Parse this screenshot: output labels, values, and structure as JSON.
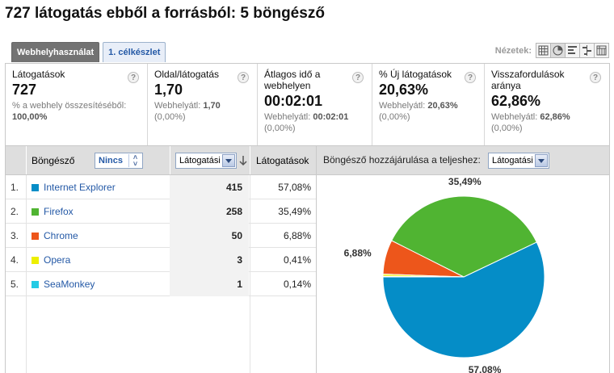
{
  "title": "727 látogatás ebből a forrásból: 5 böngésző",
  "tabs": [
    {
      "label": "Webhelyhasználat",
      "active": true
    },
    {
      "label": "1. célkészlet",
      "active": false
    }
  ],
  "views": {
    "label": "Nézetek:",
    "icons": [
      "table-view-icon",
      "pie-view-icon",
      "performance-view-icon",
      "comparison-view-icon",
      "pivot-view-icon"
    ],
    "active": "pie-view-icon"
  },
  "scorecards": [
    {
      "label": "Látogatások",
      "value": "727",
      "sub1": "% a webhely összesítéséből:",
      "sub_bold": "100,00%",
      "sub2": ""
    },
    {
      "label": "Oldal/látogatás",
      "value": "1,70",
      "sub1": "Webhelyátl:",
      "sub_bold": "1,70",
      "sub2": "(0,00%)"
    },
    {
      "label": "Átlagos idő a webhelyen",
      "value": "00:02:01",
      "sub1": "Webhelyátl:",
      "sub_bold": "00:02:01",
      "sub2": "(0,00%)"
    },
    {
      "label": "% Új látogatások",
      "value": "20,63%",
      "sub1": "Webhelyátl:",
      "sub_bold": "20,63%",
      "sub2": "(0,00%)"
    },
    {
      "label": "Visszafordulások aránya",
      "value": "62,86%",
      "sub1": "Webhelyátl:",
      "sub_bold": "62,86%",
      "sub2": "(0,00%)"
    }
  ],
  "table": {
    "col_browser": "Böngésző",
    "segment_select": "Nincs",
    "metric_select": "Látogatási",
    "col_visits": "Látogatások",
    "rows": [
      {
        "idx": "1.",
        "name": "Internet Explorer",
        "visits": "415",
        "pct": "57,08%",
        "color": "#058dc7"
      },
      {
        "idx": "2.",
        "name": "Firefox",
        "visits": "258",
        "pct": "35,49%",
        "color": "#50b432"
      },
      {
        "idx": "3.",
        "name": "Chrome",
        "visits": "50",
        "pct": "6,88%",
        "color": "#ed561b"
      },
      {
        "idx": "4.",
        "name": "Opera",
        "visits": "3",
        "pct": "0,41%",
        "color": "#edef00"
      },
      {
        "idx": "5.",
        "name": "SeaMonkey",
        "visits": "1",
        "pct": "0,14%",
        "color": "#24cbe5"
      }
    ]
  },
  "chart_header": {
    "title": "Böngésző hozzájárulása a teljeshez:",
    "select": "Látogatási"
  },
  "chart_data": {
    "type": "pie",
    "categories": [
      "Internet Explorer",
      "Firefox",
      "Chrome",
      "Opera",
      "SeaMonkey"
    ],
    "values": [
      415,
      258,
      50,
      3,
      1
    ],
    "colors": [
      "#058dc7",
      "#50b432",
      "#ed561b",
      "#edef00",
      "#24cbe5"
    ],
    "labels": {
      "Internet Explorer": "57,08%",
      "Firefox": "35,49%",
      "Chrome": "6,88%"
    }
  }
}
